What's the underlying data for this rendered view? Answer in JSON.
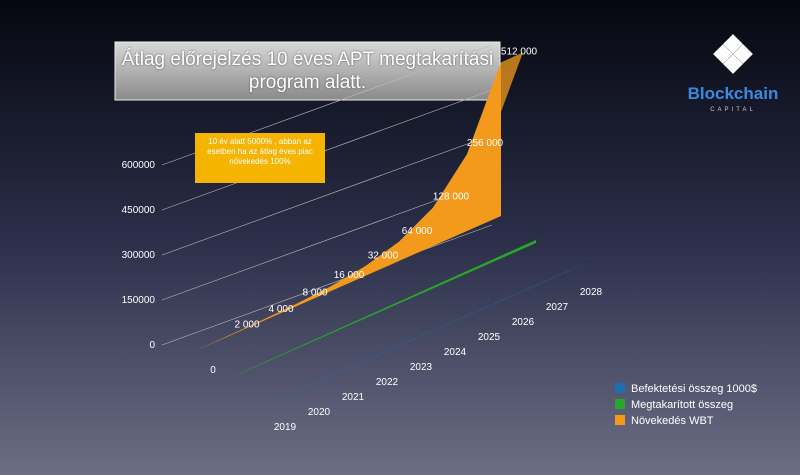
{
  "chart_data": {
    "type": "area3d",
    "title": "Átlag előrejelzés 10 éves APT megtakarítási program alatt.",
    "annotation": "10 év alatt  5000% , abban az esetben ha az átlag éves  piac növekedés 100%",
    "logo": {
      "name": "Blockchain",
      "subtitle": "CAPITAL"
    },
    "categories": [
      "2019",
      "2020",
      "2021",
      "2022",
      "2023",
      "2024",
      "2025",
      "2026",
      "2027",
      "2028"
    ],
    "series": [
      {
        "name": "Befektetési összeg 1000$",
        "color": "#1f6fb0",
        "values": [
          1000,
          1000,
          1000,
          1000,
          1000,
          1000,
          1000,
          1000,
          1000,
          1000
        ]
      },
      {
        "name": "Megtakarított összeg",
        "color": "#27a82a",
        "values": [
          1000,
          2000,
          3000,
          4000,
          5000,
          6000,
          7000,
          8000,
          9000,
          10000
        ]
      },
      {
        "name": "Növekedés WBT",
        "color": "#f39a1c",
        "values": [
          0,
          2000,
          4000,
          8000,
          16000,
          32000,
          64000,
          128000,
          256000,
          512000
        ],
        "value_labels": [
          "0",
          "2 000",
          "4 000",
          "8 000",
          "16 000",
          "32 000",
          "64 000",
          "128 000",
          "256 000",
          "512 000"
        ]
      }
    ],
    "ylim": [
      0,
      600000
    ],
    "yticks": [
      0,
      150000,
      300000,
      450000,
      600000
    ],
    "grid": true,
    "legend": "bottom-right"
  }
}
